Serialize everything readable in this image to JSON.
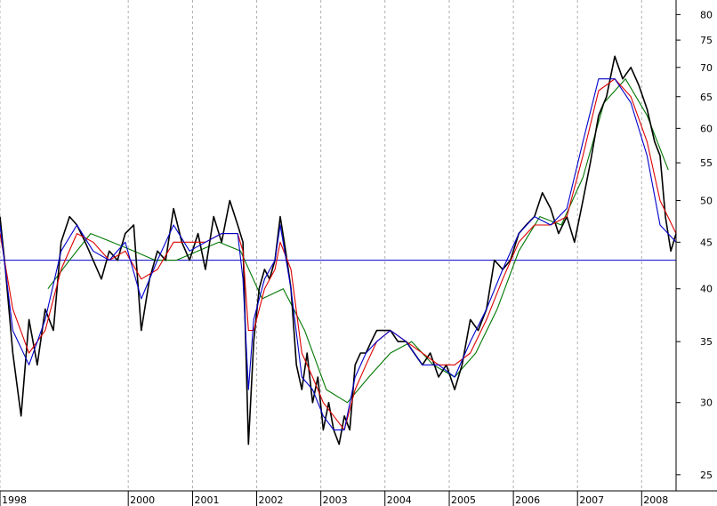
{
  "chart_data": {
    "type": "line",
    "title": "",
    "xlabel": "",
    "ylabel": "",
    "y_scale": "log",
    "ylim": [
      24,
      83
    ],
    "xlim": [
      "1998-01-01",
      "2008-07-15"
    ],
    "grid": "vertical dotted lines at year boundaries",
    "legend": "none",
    "x_tick_labels": [
      "1998",
      "2000",
      "2001",
      "2002",
      "2003",
      "2004",
      "2005",
      "2006",
      "2007",
      "2008"
    ],
    "y_tick_labels": [
      "25",
      "30",
      "35",
      "40",
      "45",
      "50",
      "55",
      "60",
      "65",
      "70",
      "75",
      "80"
    ],
    "colors": {
      "price": "#000000",
      "ma_short": "#0000cc",
      "ma_medium": "#dd0000",
      "ma_long": "#007700",
      "reference_line": "#0000cc",
      "grid": "#b0b0b0"
    },
    "reference_line_value": 43,
    "series": [
      {
        "key": "price",
        "x": [
          "1998-01-01",
          "1998-02-01",
          "1998-03-15",
          "1998-05-01",
          "1998-06-15",
          "1998-08-01",
          "1998-09-15",
          "1998-11-01",
          "1998-12-15",
          "1999-02-01",
          "1999-03-15",
          "1999-05-01",
          "1999-06-15",
          "1999-08-01",
          "1999-09-15",
          "1999-11-01",
          "1999-12-15",
          "2000-02-01",
          "2000-03-15",
          "2000-05-01",
          "2000-06-15",
          "2000-08-01",
          "2000-09-15",
          "2000-11-01",
          "2000-12-15",
          "2001-02-01",
          "2001-03-15",
          "2001-05-01",
          "2001-06-15",
          "2001-08-01",
          "2001-09-15",
          "2001-10-15",
          "2001-11-15",
          "2001-12-15",
          "2002-01-15",
          "2002-02-15",
          "2002-03-15",
          "2002-04-15",
          "2002-05-15",
          "2002-06-15",
          "2002-07-15",
          "2002-08-15",
          "2002-09-15",
          "2002-10-15",
          "2002-11-15",
          "2002-12-15",
          "2003-01-15",
          "2003-02-15",
          "2003-03-15",
          "2003-04-15",
          "2003-05-15",
          "2003-06-15",
          "2003-07-15",
          "2003-08-15",
          "2003-09-15",
          "2003-10-15",
          "2003-11-15",
          "2003-12-15",
          "2004-02-01",
          "2004-03-15",
          "2004-05-01",
          "2004-06-15",
          "2004-08-01",
          "2004-09-15",
          "2004-11-01",
          "2004-12-15",
          "2005-02-01",
          "2005-03-15",
          "2005-05-01",
          "2005-06-15",
          "2005-08-01",
          "2005-09-15",
          "2005-11-01",
          "2005-12-15",
          "2006-02-01",
          "2006-03-15",
          "2006-05-01",
          "2006-06-15",
          "2006-08-01",
          "2006-09-15",
          "2006-11-01",
          "2006-12-15",
          "2007-02-01",
          "2007-03-15",
          "2007-05-01",
          "2007-06-15",
          "2007-08-01",
          "2007-09-15",
          "2007-11-01",
          "2007-12-15",
          "2008-02-01",
          "2008-03-15",
          "2008-04-15",
          "2008-05-15",
          "2008-06-15",
          "2008-07-15"
        ],
        "values": [
          48,
          42,
          34,
          29,
          37,
          33,
          38,
          36,
          45,
          48,
          47,
          45,
          43,
          41,
          44,
          43,
          46,
          47,
          36,
          41,
          44,
          43,
          49,
          45,
          43,
          46,
          42,
          48,
          45,
          50,
          47,
          45,
          27,
          35,
          40,
          42,
          41,
          43,
          48,
          44,
          40,
          33,
          31,
          34,
          30,
          32,
          28,
          30,
          28,
          27,
          29,
          28,
          33,
          34,
          34,
          35,
          36,
          36,
          36,
          35,
          35,
          34,
          33,
          34,
          32,
          33,
          31,
          33,
          37,
          36,
          38,
          43,
          42,
          43,
          46,
          47,
          48,
          51,
          49,
          46,
          48,
          45,
          50,
          55,
          62,
          65,
          72,
          68,
          70,
          67,
          63,
          58,
          56,
          48,
          44,
          46
        ]
      },
      {
        "key": "ma_short",
        "x": [
          "1998-01-01",
          "1998-03-15",
          "1998-06-15",
          "1998-09-15",
          "1998-12-15",
          "1999-03-15",
          "1999-06-15",
          "1999-09-15",
          "1999-12-15",
          "2000-03-15",
          "2000-06-15",
          "2000-09-15",
          "2000-12-15",
          "2001-03-15",
          "2001-06-15",
          "2001-09-15",
          "2001-10-15",
          "2001-11-15",
          "2001-12-15",
          "2002-02-15",
          "2002-04-15",
          "2002-05-15",
          "2002-07-15",
          "2002-09-15",
          "2002-11-15",
          "2003-01-15",
          "2003-03-15",
          "2003-05-15",
          "2003-07-15",
          "2003-09-15",
          "2003-11-15",
          "2004-02-01",
          "2004-05-01",
          "2004-08-01",
          "2004-11-01",
          "2005-02-01",
          "2005-05-01",
          "2005-08-01",
          "2005-11-01",
          "2006-02-01",
          "2006-05-01",
          "2006-08-01",
          "2006-11-01",
          "2007-02-01",
          "2007-05-01",
          "2007-08-01",
          "2007-11-01",
          "2008-02-01",
          "2008-04-15",
          "2008-07-15"
        ],
        "values": [
          47,
          36,
          33,
          37,
          44,
          47,
          44,
          43,
          45,
          39,
          43,
          47,
          44,
          45,
          46,
          46,
          41,
          31,
          37,
          41,
          43,
          47,
          40,
          32,
          31,
          29,
          28,
          28,
          32,
          34,
          35,
          36,
          35,
          33,
          33,
          32,
          35,
          38,
          42,
          46,
          48,
          47,
          49,
          58,
          68,
          68,
          64,
          56,
          47,
          45
        ]
      },
      {
        "key": "ma_medium",
        "x": [
          "1998-01-01",
          "1998-03-15",
          "1998-06-15",
          "1998-09-15",
          "1998-12-15",
          "1999-03-15",
          "1999-06-15",
          "1999-09-15",
          "1999-12-15",
          "2000-03-15",
          "2000-06-15",
          "2000-09-15",
          "2000-12-15",
          "2001-03-15",
          "2001-06-15",
          "2001-09-15",
          "2001-10-15",
          "2001-11-15",
          "2001-12-15",
          "2002-02-15",
          "2002-04-15",
          "2002-05-15",
          "2002-07-15",
          "2002-09-15",
          "2002-11-15",
          "2003-01-15",
          "2003-03-15",
          "2003-05-15",
          "2003-07-15",
          "2003-09-15",
          "2003-11-15",
          "2004-02-01",
          "2004-05-01",
          "2004-08-01",
          "2004-11-01",
          "2005-02-01",
          "2005-05-01",
          "2005-08-01",
          "2005-11-01",
          "2006-02-01",
          "2006-05-01",
          "2006-08-01",
          "2006-11-01",
          "2007-02-01",
          "2007-05-01",
          "2007-08-01",
          "2007-11-01",
          "2008-02-01",
          "2008-04-15",
          "2008-07-15"
        ],
        "values": [
          46,
          38,
          34,
          36,
          42,
          46,
          45,
          43,
          44,
          41,
          42,
          45,
          45,
          45,
          46,
          46,
          44,
          36,
          36,
          40,
          42,
          45,
          42,
          34,
          32,
          30,
          29,
          28,
          31,
          33,
          35,
          36,
          35,
          34,
          33,
          33,
          34,
          37,
          41,
          45,
          47,
          47,
          48,
          56,
          66,
          68,
          65,
          58,
          50,
          46
        ]
      },
      {
        "key": "ma_long",
        "x": [
          "1998-10-01",
          "1999-02-01",
          "1999-06-01",
          "1999-10-01",
          "2000-02-01",
          "2000-06-01",
          "2000-10-01",
          "2001-02-01",
          "2001-06-01",
          "2001-10-01",
          "2002-02-01",
          "2002-06-01",
          "2002-10-01",
          "2003-02-01",
          "2003-06-01",
          "2003-10-01",
          "2004-02-01",
          "2004-06-01",
          "2004-10-01",
          "2005-02-01",
          "2005-06-01",
          "2005-10-01",
          "2006-02-01",
          "2006-06-01",
          "2006-10-01",
          "2007-02-01",
          "2007-06-01",
          "2007-10-01",
          "2008-02-01",
          "2008-06-01"
        ],
        "values": [
          40,
          43,
          46,
          45,
          44,
          43,
          43,
          44,
          45,
          44,
          39,
          40,
          36,
          31,
          30,
          32,
          34,
          35,
          33,
          32,
          34,
          38,
          44,
          48,
          47,
          53,
          64,
          68,
          62,
          54
        ]
      }
    ]
  }
}
